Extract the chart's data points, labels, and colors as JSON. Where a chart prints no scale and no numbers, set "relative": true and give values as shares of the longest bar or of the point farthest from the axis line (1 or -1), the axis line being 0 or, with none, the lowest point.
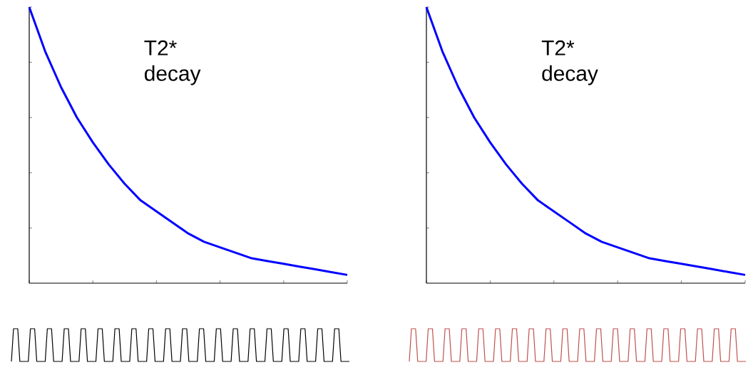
{
  "chart_data": [
    {
      "type": "line",
      "relative": true,
      "categories": [
        null,
        null,
        null,
        null,
        null,
        null,
        null,
        null,
        null,
        null,
        null,
        null,
        null,
        null,
        null,
        null,
        null,
        null,
        null,
        null,
        null
      ],
      "values": [
        1,
        0.84,
        0.71,
        0.6,
        0.51,
        0.43,
        0.36,
        0.3,
        0.26,
        0.22,
        0.18,
        0.15,
        0.13,
        0.11,
        0.09,
        0.08,
        0.07,
        0.06,
        0.05,
        0.04,
        0.03
      ],
      "color": "#0000ff",
      "annotations": [
        "T2* decay"
      ]
    },
    {
      "type": "line",
      "relative": true,
      "categories": [
        null,
        null,
        null,
        null,
        null,
        null,
        null,
        null,
        null,
        null,
        null,
        null,
        null,
        null,
        null,
        null,
        null,
        null,
        null,
        null,
        null
      ],
      "values": [
        1,
        0.84,
        0.71,
        0.6,
        0.51,
        0.43,
        0.36,
        0.3,
        0.26,
        0.22,
        0.18,
        0.15,
        0.13,
        0.11,
        0.09,
        0.08,
        0.07,
        0.06,
        0.05,
        0.04,
        0.03
      ],
      "color": "#0000ff",
      "annotations": [
        "T2* decay"
      ]
    },
    {
      "type": "line",
      "relative": true,
      "categories": [
        null,
        null,
        null,
        null,
        null,
        null,
        null,
        null,
        null,
        null,
        null,
        null,
        null,
        null,
        null,
        null,
        null,
        null,
        null,
        null,
        null,
        null,
        null,
        null,
        null,
        null,
        null,
        null,
        null,
        null,
        null,
        null,
        null,
        null,
        null,
        null,
        null,
        null,
        null,
        null,
        null,
        null,
        null,
        null,
        null,
        null,
        null,
        null,
        null,
        null,
        null,
        null,
        null,
        null,
        null,
        null,
        null,
        null,
        null,
        null,
        null,
        null,
        null,
        null,
        null,
        null,
        null,
        null,
        null,
        null,
        null,
        null,
        null,
        null,
        null,
        null,
        null,
        null,
        null,
        null,
        null,
        null,
        null,
        null,
        null,
        null,
        null,
        null,
        null,
        null,
        null,
        null,
        null,
        null,
        null,
        null,
        null,
        null,
        null,
        null,
        null,
        null,
        null,
        null,
        null,
        null,
        null,
        null,
        null,
        null,
        null,
        null,
        null,
        null,
        null,
        null,
        null,
        null,
        null,
        null,
        null,
        null,
        null,
        null,
        null,
        null,
        null,
        null,
        null,
        null,
        null,
        null,
        null,
        null,
        null,
        null,
        null,
        null,
        null,
        null,
        null,
        null,
        null,
        null,
        null,
        null,
        null,
        null,
        null,
        null,
        null,
        null,
        null,
        null,
        null,
        null,
        null,
        null,
        null,
        null,
        null
      ],
      "values": [
        0,
        1,
        1,
        1,
        0,
        0,
        0,
        0,
        0,
        1,
        1,
        1,
        0,
        0,
        0,
        0,
        0,
        1,
        1,
        1,
        0,
        0,
        0,
        0,
        0,
        1,
        1,
        1,
        0,
        0,
        0,
        0,
        0,
        1,
        1,
        1,
        0,
        0,
        0,
        0,
        0,
        1,
        1,
        1,
        0,
        0,
        0,
        0,
        0,
        1,
        1,
        1,
        0,
        0,
        0,
        0,
        0,
        1,
        1,
        1,
        0,
        0,
        0,
        0,
        0,
        1,
        1,
        1,
        0,
        0,
        0,
        0,
        0,
        1,
        1,
        1,
        0,
        0,
        0,
        0,
        0,
        1,
        1,
        1,
        0,
        0,
        0,
        0,
        0,
        1,
        1,
        1,
        0,
        0,
        0,
        0,
        0,
        1,
        1,
        1,
        0,
        0,
        0,
        0,
        0,
        1,
        1,
        1,
        0,
        0,
        0,
        0,
        0,
        1,
        1,
        1,
        0,
        0,
        0,
        0,
        0,
        1,
        1,
        1,
        0,
        0,
        0,
        0,
        0,
        1,
        1,
        1,
        0,
        0,
        0,
        0,
        0,
        1,
        1,
        1,
        0,
        0,
        0,
        0,
        0,
        1,
        1,
        1,
        0,
        0,
        0,
        0,
        0,
        1,
        1,
        1,
        0,
        0,
        0,
        0,
        0
      ],
      "color": "#000000"
    },
    {
      "type": "line",
      "relative": true,
      "categories": [
        null,
        null,
        null,
        null,
        null,
        null,
        null,
        null,
        null,
        null,
        null,
        null,
        null,
        null,
        null,
        null,
        null,
        null,
        null,
        null,
        null,
        null,
        null,
        null,
        null,
        null,
        null,
        null,
        null,
        null,
        null,
        null,
        null,
        null,
        null,
        null,
        null,
        null,
        null,
        null,
        null,
        null,
        null,
        null,
        null,
        null,
        null,
        null,
        null,
        null,
        null,
        null,
        null,
        null,
        null,
        null,
        null,
        null,
        null,
        null,
        null,
        null,
        null,
        null,
        null,
        null,
        null,
        null,
        null,
        null,
        null,
        null,
        null,
        null,
        null,
        null,
        null,
        null,
        null,
        null,
        null,
        null,
        null,
        null,
        null,
        null,
        null,
        null,
        null,
        null,
        null,
        null,
        null,
        null,
        null,
        null,
        null,
        null,
        null,
        null,
        null,
        null,
        null,
        null,
        null,
        null,
        null,
        null,
        null,
        null,
        null,
        null,
        null,
        null,
        null,
        null,
        null,
        null,
        null,
        null,
        null,
        null,
        null,
        null,
        null,
        null,
        null,
        null,
        null,
        null,
        null,
        null,
        null,
        null,
        null,
        null,
        null,
        null,
        null,
        null,
        null,
        null,
        null,
        null,
        null,
        null,
        null,
        null,
        null,
        null,
        null,
        null,
        null,
        null,
        null,
        null,
        null,
        null,
        null,
        null,
        null
      ],
      "values": [
        0,
        1,
        1,
        1,
        0,
        0,
        0,
        0,
        0,
        1,
        1,
        1,
        0,
        0,
        0,
        0,
        0,
        1,
        1,
        1,
        0,
        0,
        0,
        0,
        0,
        1,
        1,
        1,
        0,
        0,
        0,
        0,
        0,
        1,
        1,
        1,
        0,
        0,
        0,
        0,
        0,
        1,
        1,
        1,
        0,
        0,
        0,
        0,
        0,
        1,
        1,
        1,
        0,
        0,
        0,
        0,
        0,
        1,
        1,
        1,
        0,
        0,
        0,
        0,
        0,
        1,
        1,
        1,
        0,
        0,
        0,
        0,
        0,
        1,
        1,
        1,
        0,
        0,
        0,
        0,
        0,
        1,
        1,
        1,
        0,
        0,
        0,
        0,
        0,
        1,
        1,
        1,
        0,
        0,
        0,
        0,
        0,
        1,
        1,
        1,
        0,
        0,
        0,
        0,
        0,
        1,
        1,
        1,
        0,
        0,
        0,
        0,
        0,
        1,
        1,
        1,
        0,
        0,
        0,
        0,
        0,
        1,
        1,
        1,
        0,
        0,
        0,
        0,
        0,
        1,
        1,
        1,
        0,
        0,
        0,
        0,
        0,
        1,
        1,
        1,
        0,
        0,
        0,
        0,
        0,
        1,
        1,
        1,
        0,
        0,
        0,
        0,
        0,
        1,
        1,
        1,
        0,
        0,
        0,
        0,
        0
      ],
      "color": "#c0504d"
    }
  ]
}
